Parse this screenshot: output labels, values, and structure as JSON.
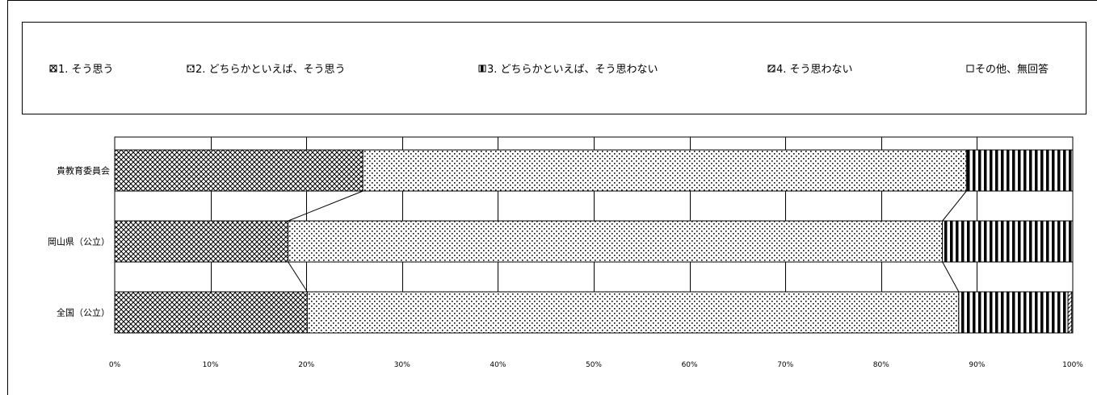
{
  "chart_data": {
    "type": "bar",
    "orientation": "horizontal",
    "stacked": true,
    "categories": [
      "貴教育委員会",
      "岡山県（公立）",
      "全国（公立）"
    ],
    "series": [
      {
        "name": "1. そう思う",
        "values": [
          25.9,
          18.1,
          20.1
        ]
      },
      {
        "name": "2. どちらかといえば、そう思う",
        "values": [
          63.0,
          68.3,
          68.0
        ]
      },
      {
        "name": "3. どちらかといえば、そう思わない",
        "values": [
          11.1,
          13.6,
          11.4
        ]
      },
      {
        "name": "4. そう思わない",
        "values": [
          0,
          0,
          0.4
        ]
      },
      {
        "name": "その他、無回答",
        "values": [
          0,
          0,
          0.1
        ]
      }
    ],
    "xlim": [
      0,
      100
    ],
    "x_ticks": [
      "0%",
      "10%",
      "20%",
      "30%",
      "40%",
      "50%",
      "60%",
      "70%",
      "80%",
      "90%",
      "100%"
    ],
    "grid": true,
    "legend_position": "top"
  }
}
